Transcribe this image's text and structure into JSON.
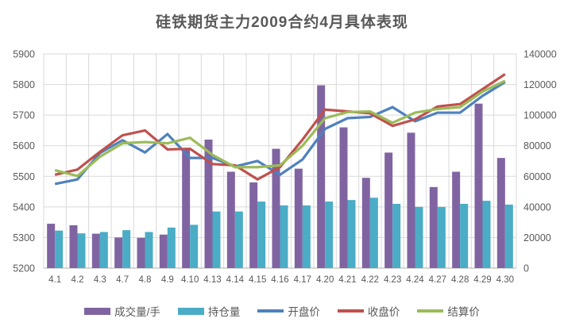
{
  "title": "硅铁期货主力2009合约4月具体表现",
  "colors": {
    "volume_bar": "#8064A2",
    "open_interest_bar": "#4BACC6",
    "open_line": "#4F81BD",
    "close_line": "#C0504D",
    "settle_line": "#9BBB59",
    "text": "#595959",
    "gridline": "#D9D9D9",
    "axis_line": "#BFBFBF",
    "background": "#FFFFFF"
  },
  "chart_data": {
    "type": "bar",
    "subtype": "combo-bar-line-dual-axis",
    "title": "硅铁期货主力2009合约4月具体表现",
    "categories": [
      "4.1",
      "4.2",
      "4.3",
      "4.7",
      "4.8",
      "4.9",
      "4.10",
      "4.13",
      "4.14",
      "4.15",
      "4.16",
      "4.17",
      "4.20",
      "4.21",
      "4.22",
      "4.23",
      "4.24",
      "4.27",
      "4.28",
      "4.29",
      "4.30"
    ],
    "series": [
      {
        "id": "volume",
        "name": "成交量/手",
        "render": "bar",
        "axis": "right",
        "color": "#8064A2",
        "values": [
          29000,
          28000,
          22500,
          20000,
          19800,
          21900,
          78000,
          84000,
          63000,
          56000,
          78000,
          65000,
          119500,
          92000,
          59000,
          75500,
          88500,
          53000,
          63000,
          107500,
          72000
        ]
      },
      {
        "id": "open-interest",
        "name": "持仓量",
        "render": "bar",
        "axis": "right",
        "color": "#4BACC6",
        "values": [
          24500,
          22700,
          23600,
          24800,
          23600,
          26500,
          28300,
          37000,
          37000,
          43500,
          41000,
          41000,
          43500,
          44500,
          46000,
          42000,
          40000,
          40000,
          42000,
          44000,
          41500
        ]
      },
      {
        "id": "open-price",
        "name": "开盘价",
        "render": "line",
        "axis": "left",
        "color": "#4F81BD",
        "values": [
          5475,
          5490,
          5576,
          5618,
          5578,
          5638,
          5560,
          5560,
          5532,
          5550,
          5505,
          5555,
          5655,
          5690,
          5694,
          5726,
          5680,
          5708,
          5708,
          5763,
          5808
        ]
      },
      {
        "id": "close-price",
        "name": "收盘价",
        "render": "line",
        "axis": "left",
        "color": "#C0504D",
        "values": [
          5505,
          5522,
          5580,
          5634,
          5650,
          5588,
          5590,
          5540,
          5536,
          5490,
          5530,
          5620,
          5718,
          5712,
          5706,
          5665,
          5686,
          5728,
          5736,
          5785,
          5834
        ]
      },
      {
        "id": "settle-price",
        "name": "结算价",
        "render": "line",
        "axis": "left",
        "color": "#9BBB59",
        "values": [
          5520,
          5501,
          5564,
          5608,
          5612,
          5608,
          5626,
          5570,
          5530,
          5530,
          5536,
          5600,
          5690,
          5710,
          5712,
          5675,
          5708,
          5720,
          5726,
          5777,
          5812
        ]
      }
    ],
    "left_axis": {
      "min": 5200,
      "max": 5900,
      "ticks": [
        5200,
        5300,
        5400,
        5500,
        5600,
        5700,
        5800,
        5900
      ]
    },
    "right_axis": {
      "min": 0,
      "max": 140000,
      "ticks": [
        0,
        20000,
        40000,
        60000,
        80000,
        100000,
        120000,
        140000
      ]
    },
    "grid": "horizontal-and-vertical",
    "legend_position": "bottom"
  }
}
